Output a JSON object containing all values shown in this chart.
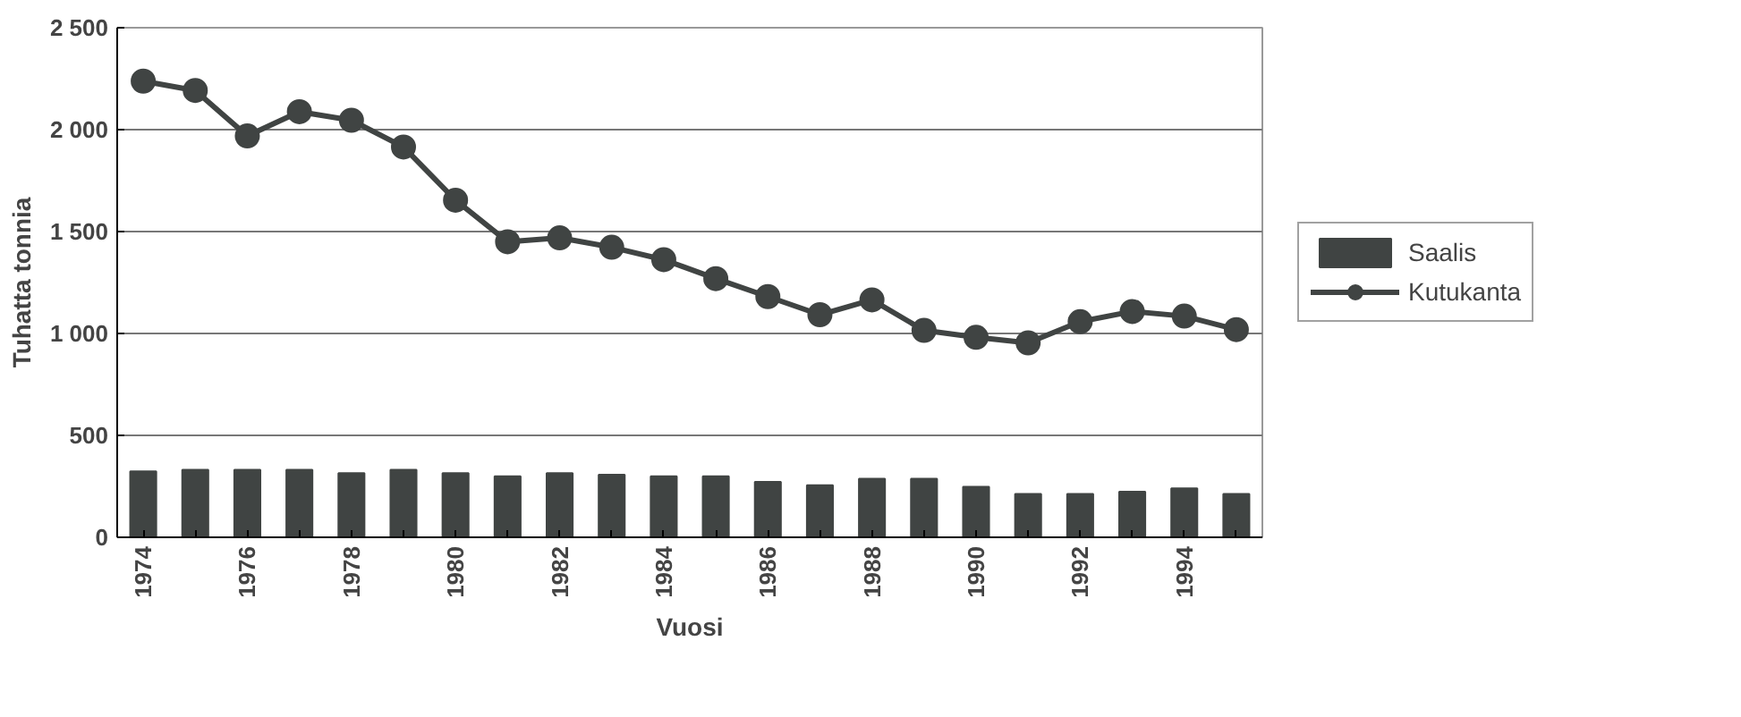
{
  "chart_data": {
    "type": "bar",
    "xlabel": "Vuosi",
    "ylabel": "Tuhatta tonnia",
    "x": [
      1974,
      1975,
      1976,
      1977,
      1978,
      1979,
      1980,
      1981,
      1982,
      1983,
      1984,
      1985,
      1986,
      1987,
      1988,
      1989,
      1990,
      1991,
      1992,
      1993,
      1994,
      1995
    ],
    "xlim": [
      1973.5,
      1995.5
    ],
    "xticks": [
      1974,
      {
        "value": 1975,
        "label": null
      },
      1976,
      {
        "value": 1977,
        "label": null
      },
      1978,
      {
        "value": 1979,
        "label": null
      },
      1980,
      {
        "value": 1981,
        "label": null
      },
      1982,
      {
        "value": 1983,
        "label": null
      },
      1984,
      {
        "value": 1985,
        "label": null
      },
      1986,
      {
        "value": 1987,
        "label": null
      },
      1988,
      {
        "value": 1989,
        "label": null
      },
      1990,
      {
        "value": 1991,
        "label": null
      },
      1992,
      {
        "value": 1993,
        "label": null
      },
      1994,
      {
        "value": 1995,
        "label": null
      }
    ],
    "ylim": [
      0,
      2500
    ],
    "yticks": [
      {
        "value": 0,
        "label": "0"
      },
      {
        "value": 500,
        "label": "500"
      },
      {
        "value": 1000,
        "label": "1 000"
      },
      {
        "value": 1500,
        "label": "1 500"
      },
      {
        "value": 2000,
        "label": "2 000"
      },
      {
        "value": 2500,
        "label": "2 500"
      }
    ],
    "grid": "y",
    "legend": "right",
    "marker": "circle",
    "series": [
      {
        "name": "Saalis",
        "color": "#404443",
        "values": [
          323,
          331,
          331,
          331,
          315,
          331,
          315,
          299,
          315,
          307,
          299,
          299,
          272,
          256,
          287,
          287,
          248,
          213,
          213,
          224,
          240,
          213
        ]
      },
      {
        "name": "Kutukanta",
        "type": "line",
        "color": "#404443",
        "values": [
          2238,
          2192,
          1969,
          2088,
          2046,
          1915,
          1654,
          1450,
          1469,
          1423,
          1362,
          1269,
          1181,
          1092,
          1165,
          1015,
          981,
          954,
          1058,
          1108,
          1085,
          1019
        ]
      }
    ]
  }
}
